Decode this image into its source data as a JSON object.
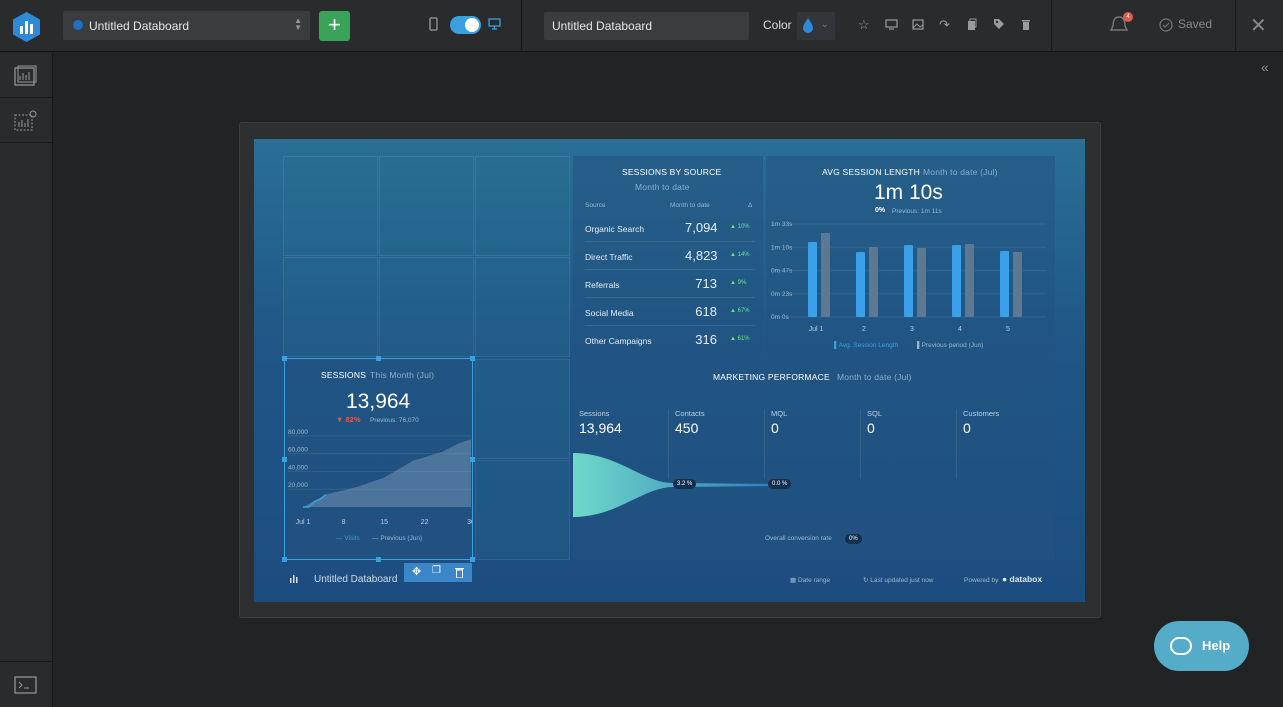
{
  "topbar": {
    "board_select": "Untitled Databoard",
    "add_label": "+",
    "name_value": "Untitled Databoard",
    "color_label": "Color",
    "notification_count": "4",
    "saved_label": "Saved"
  },
  "colors": {
    "accent": "#3aa0e0",
    "add": "#3aa35a",
    "help": "#55acc9",
    "positive": "#6de38c",
    "negative": "#e05a4f"
  },
  "board": {
    "sessions_by_source": {
      "title": "SESSIONS BY SOURCE",
      "subtitle": "Month to date",
      "col_source": "Source",
      "col_mtd": "Month to date",
      "col_delta": "Δ",
      "rows": [
        {
          "label": "Organic Search",
          "value": "7,094",
          "change": "▲ 10%"
        },
        {
          "label": "Direct Traffic",
          "value": "4,823",
          "change": "▲ 14%"
        },
        {
          "label": "Referrals",
          "value": "713",
          "change": "▲ 9%"
        },
        {
          "label": "Social Media",
          "value": "618",
          "change": "▲ 67%"
        },
        {
          "label": "Other Campaigns",
          "value": "316",
          "change": "▲ 61%"
        }
      ]
    },
    "avg_session": {
      "title": "AVG SESSION LENGTH",
      "period": "Month to date (Jul)",
      "value": "1m 10s",
      "change": "0%",
      "previous": "Previous: 1m 11s",
      "legend_current": "Avg. Session Length",
      "legend_previous": "Previous period (Jun)"
    },
    "sessions": {
      "title": "SESSIONS",
      "period": "This Month (Jul)",
      "value": "13,964",
      "change": "82%",
      "previous": "Previous: 76,070",
      "legend_visits": "Visits",
      "legend_previous": "Previous (Jun)"
    },
    "marketing": {
      "title": "MARKETING PERFORMACE",
      "period": "Month to date (Jul)",
      "columns": [
        {
          "label": "Sessions",
          "value": "13,964"
        },
        {
          "label": "Contacts",
          "value": "450"
        },
        {
          "label": "MQL",
          "value": "0"
        },
        {
          "label": "SQL",
          "value": "0"
        },
        {
          "label": "Customers",
          "value": "0"
        }
      ],
      "rate1": "3.2 %",
      "rate2": "0.0 %",
      "overall_label": "Overall conversion rate",
      "overall_value": "0%"
    },
    "footer": {
      "title": "Untitled Databoard",
      "date_range": "Date range",
      "updated": "Last updated just now",
      "powered_by": "Powered by",
      "brand": "databox"
    }
  },
  "help": {
    "label": "Help"
  },
  "chart_data": [
    {
      "type": "bar",
      "title": "AVG SESSION LENGTH",
      "categories": [
        "Jul 1",
        "2",
        "3",
        "4",
        "5"
      ],
      "y_ticks": [
        "1m 33s",
        "1m 10s",
        "0m 47s",
        "0m 23s",
        "0m 0s"
      ],
      "ylim": [
        0,
        93
      ],
      "series": [
        {
          "name": "Avg. Session Length",
          "values": [
            75,
            65,
            72,
            72,
            66
          ]
        },
        {
          "name": "Previous period (Jun)",
          "values": [
            84,
            70,
            69,
            73,
            65
          ]
        }
      ]
    },
    {
      "type": "area",
      "title": "SESSIONS",
      "x_ticks": [
        "Jul 1",
        "8",
        "15",
        "22",
        "30"
      ],
      "y_ticks": [
        "80,000",
        "60,000",
        "40,000",
        "20,000"
      ],
      "ylim": [
        0,
        90000
      ],
      "series": [
        {
          "name": "Visits",
          "x": [
            1,
            2,
            3,
            4,
            5
          ],
          "y": [
            0,
            0,
            6000,
            9000,
            13964
          ]
        },
        {
          "name": "Previous (Jun)",
          "x": [
            1,
            5,
            10,
            15,
            20,
            25,
            28,
            30
          ],
          "y": [
            0,
            14000,
            22000,
            33000,
            52000,
            62000,
            72000,
            76070
          ]
        }
      ]
    }
  ]
}
